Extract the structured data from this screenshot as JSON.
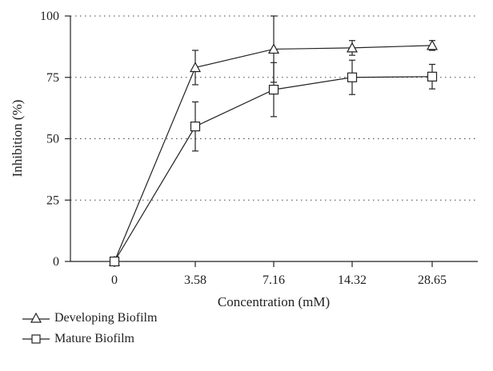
{
  "chart_data": {
    "type": "line",
    "title": "",
    "xlabel": "Concentration (mM)",
    "ylabel": "Inhibition (%)",
    "categories": [
      "0",
      "3.58",
      "7.16",
      "14.32",
      "28.65"
    ],
    "ylim": [
      0,
      100
    ],
    "yticks": [
      "0",
      "25",
      "50",
      "75",
      "100"
    ],
    "grid": "horizontal dotted",
    "legend_position": "bottom-left",
    "series": [
      {
        "name": "Developing Biofilm",
        "marker": "triangle",
        "values": [
          0,
          79,
          86.5,
          87,
          88
        ],
        "errors": [
          0,
          7,
          13.5,
          3,
          2
        ]
      },
      {
        "name": "Mature Biofilm",
        "marker": "square",
        "values": [
          0,
          55,
          70,
          75,
          75.3
        ],
        "errors": [
          0,
          10,
          11,
          7,
          5
        ]
      }
    ]
  }
}
